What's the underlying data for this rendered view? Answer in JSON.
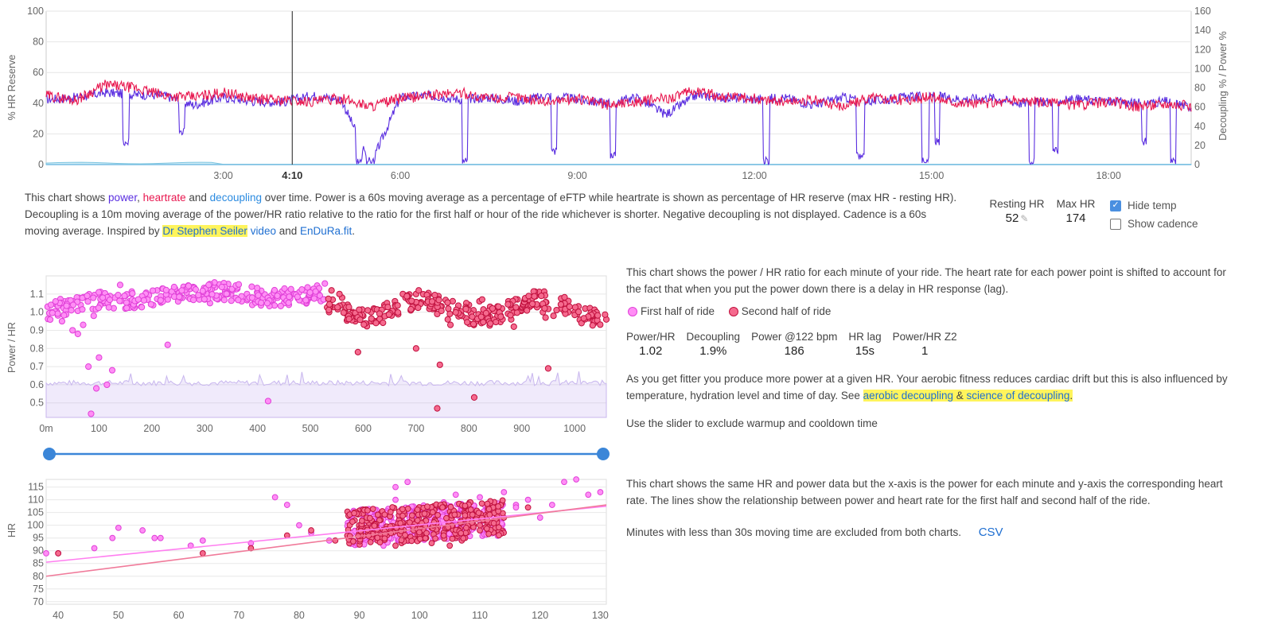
{
  "top_chart": {
    "y_left_label": "% HR Reserve",
    "y_right_label": "Decoupling % / Power %",
    "y_left_ticks": [
      "0",
      "20",
      "40",
      "60",
      "80",
      "100"
    ],
    "y_right_ticks": [
      "0",
      "20",
      "40",
      "60",
      "80",
      "100",
      "120",
      "140",
      "160"
    ],
    "x_ticks": [
      "3:00",
      "6:00",
      "9:00",
      "12:00",
      "15:00",
      "18:00"
    ],
    "cursor_label": "4:10"
  },
  "description1": {
    "t1": "This chart shows ",
    "power": "power",
    "sep1": ", ",
    "heartrate": "heartrate",
    "t2": " and ",
    "decoupling": "decoupling",
    "t3": " over time. Power is a 60s moving average as a percentage of eFTP while heartrate is shown as percentage of HR reserve (max HR - resting HR). Decoupling is a 10m moving average of the power/HR ratio relative to the ratio for the first half or hour of the ride whichever is shorter. Negative decoupling is not displayed. Cadence is a 60s moving average. Inspired by ",
    "link_seiler": "Dr Stephen Seiler",
    "t4": " ",
    "link_video": "video",
    "t5": " and ",
    "link_endura": "EnDuRa.fit",
    "t6": "."
  },
  "hr_settings": {
    "resting_label": "Resting HR",
    "resting_value": "52",
    "max_label": "Max HR",
    "max_value": "174",
    "hide_temp_label": "Hide temp",
    "hide_temp_checked": true,
    "show_cadence_label": "Show cadence",
    "show_cadence_checked": false
  },
  "ratio_chart": {
    "y_label": "Power / HR",
    "y_ticks": [
      "0.5",
      "0.6",
      "0.7",
      "0.8",
      "0.9",
      "1.0",
      "1.1"
    ],
    "x_ticks": [
      "0m",
      "100",
      "200",
      "300",
      "400",
      "500",
      "600",
      "700",
      "800",
      "900",
      "1000"
    ]
  },
  "slider": {
    "start_fraction": 0.0,
    "end_fraction": 1.0
  },
  "description2": {
    "text": "This chart shows the power / HR ratio for each minute of your ride. The heart rate for each power point is shifted to account for the fact that when you put the power down there is a delay in HR response (lag).",
    "legend_first": "First half of ride",
    "legend_second": "Second half of ride"
  },
  "stats": [
    {
      "label": "Power/HR",
      "value": "1.02"
    },
    {
      "label": "Decoupling",
      "value": "1.9%"
    },
    {
      "label": "Power @122 bpm",
      "value": "186"
    },
    {
      "label": "HR lag",
      "value": "15s"
    },
    {
      "label": "Power/HR Z2",
      "value": "1"
    }
  ],
  "description3": {
    "t1": "As you get fitter you produce more power at a given HR. Your aerobic fitness reduces cardiac drift but this is also influenced by temperature, hydration level and time of day. See ",
    "link_aerobic": "aerobic decoupling",
    "amp": " & ",
    "link_science": "science of decoupling",
    "t2": "."
  },
  "slider_hint": "Use the slider to exclude warmup and cooldown time",
  "scatter_chart": {
    "y_label": "HR",
    "y_ticks": [
      "70",
      "75",
      "80",
      "85",
      "90",
      "95",
      "100",
      "105",
      "110",
      "115"
    ],
    "x_ticks": [
      "40",
      "50",
      "60",
      "70",
      "80",
      "90",
      "100",
      "110",
      "120",
      "130"
    ]
  },
  "description4": "This chart shows the same HR and power data but the x-axis is the power for each minute and y-axis the corresponding heart rate. The lines show the relationship between power and heart rate for the first half and second half of the ride.",
  "description5": "Minutes with less than 30s moving time are excluded from both charts.",
  "csv_label": "CSV",
  "colors": {
    "power": "#5a2ee0",
    "heartrate": "#e8174f",
    "decoupling": "#2a8ae0",
    "first_half": "#ff2ee6",
    "second_half": "#e8174f",
    "slider": "#3b86d8",
    "highlight": "#fff45c"
  },
  "chart_data": [
    {
      "type": "line",
      "xlabel": "",
      "ylabel": "% HR Reserve",
      "y2label": "Decoupling % / Power %",
      "xlim_minutes": [
        0,
        19.4
      ],
      "ylim": [
        0,
        100
      ],
      "y2lim": [
        0,
        160
      ],
      "cursor_minute": 4.17,
      "series": [
        {
          "name": "heartrate",
          "axis": "left",
          "x": [
            0,
            0.5,
            1,
            1.5,
            2,
            2.5,
            3,
            3.5,
            4,
            4.5,
            5,
            5.5,
            6,
            6.5,
            7,
            7.5,
            8,
            8.5,
            9,
            9.5,
            10,
            10.5,
            11,
            11.5,
            12,
            12.5,
            13,
            13.5,
            14,
            14.5,
            15,
            15.5,
            16,
            16.5,
            17,
            17.5,
            18,
            18.5,
            19,
            19.4
          ],
          "y": [
            45,
            42,
            52,
            50,
            45,
            44,
            47,
            43,
            42,
            41,
            43,
            38,
            43,
            45,
            47,
            43,
            44,
            41,
            43,
            39,
            41,
            43,
            48,
            44,
            43,
            41,
            42,
            38,
            44,
            42,
            44,
            40,
            40,
            42,
            40,
            39,
            41,
            38,
            40,
            38
          ]
        },
        {
          "name": "power",
          "axis": "right",
          "x": [
            0,
            0.5,
            1,
            1.5,
            2,
            2.5,
            3,
            3.5,
            4,
            4.5,
            5,
            5.5,
            6,
            6.5,
            7,
            7.5,
            8,
            8.5,
            9,
            9.5,
            10,
            10.5,
            11,
            11.5,
            12,
            12.5,
            13,
            13.5,
            14,
            14.5,
            15,
            15.5,
            16,
            16.5,
            17,
            17.5,
            18,
            18.5,
            19,
            19.4
          ],
          "y": [
            68,
            70,
            75,
            73,
            72,
            62,
            70,
            66,
            65,
            72,
            68,
            0,
            70,
            72,
            68,
            70,
            66,
            72,
            68,
            64,
            70,
            52,
            72,
            70,
            68,
            70,
            62,
            70,
            66,
            70,
            72,
            68,
            70,
            64,
            66,
            68,
            66,
            64,
            66,
            60
          ]
        }
      ]
    },
    {
      "type": "scatter",
      "ylabel": "Power / HR",
      "xlim": [
        0,
        1060
      ],
      "ylim": [
        0.42,
        1.2
      ],
      "series": [
        {
          "name": "First half of ride",
          "x": [
            10,
            30,
            50,
            70,
            90,
            110,
            130,
            150,
            170,
            190,
            210,
            230,
            250,
            270,
            290,
            310,
            330,
            350,
            370,
            390,
            410,
            430,
            450,
            470,
            490,
            510,
            20,
            60,
            100,
            140,
            180,
            220,
            260,
            300,
            340,
            380,
            420,
            460,
            500,
            80,
            95,
            115,
            125,
            230,
            420,
            85,
            100
          ],
          "y": [
            1.0,
            0.95,
            0.9,
            0.93,
            0.98,
            1.05,
            1.08,
            1.02,
            1.06,
            1.1,
            1.12,
            1.09,
            1.11,
            1.08,
            1.07,
            1.05,
            1.09,
            1.1,
            1.06,
            1.04,
            1.08,
            1.07,
            1.05,
            1.1,
            1.12,
            1.09,
            1.04,
            0.88,
            1.1,
            1.15,
            1.03,
            1.13,
            1.14,
            1.07,
            1.12,
            1.1,
            1.06,
            1.11,
            1.08,
            0.7,
            0.58,
            0.6,
            0.68,
            0.82,
            0.51,
            0.44,
            0.75
          ]
        },
        {
          "name": "Second half of ride",
          "x": [
            540,
            560,
            580,
            600,
            620,
            640,
            660,
            680,
            700,
            720,
            740,
            760,
            780,
            800,
            820,
            840,
            860,
            880,
            900,
            920,
            940,
            960,
            980,
            1000,
            1020,
            1040,
            1060,
            555,
            585,
            615,
            645,
            675,
            705,
            735,
            765,
            795,
            825,
            855,
            885,
            915,
            945,
            975,
            1005,
            1035,
            745,
            810,
            740,
            950,
            590,
            700
          ],
          "y": [
            1.12,
            1.08,
            1.0,
            0.98,
            1.02,
            1.04,
            1.06,
            1.08,
            1.1,
            1.05,
            0.99,
            0.96,
            1.0,
            1.04,
            1.06,
            1.03,
            0.98,
            0.96,
            1.02,
            1.04,
            1.0,
            0.98,
            1.01,
            1.0,
            1.02,
            0.98,
            0.96,
            1.1,
            0.95,
            1.0,
            1.05,
            1.1,
            1.12,
            1.02,
            0.93,
            1.05,
            1.07,
            1.0,
            0.92,
            1.03,
            0.97,
            1.02,
            0.99,
            0.95,
            0.71,
            0.53,
            0.47,
            0.69,
            0.78,
            0.8
          ]
        }
      ]
    },
    {
      "type": "scatter",
      "ylabel": "HR",
      "xlim": [
        38,
        131
      ],
      "ylim": [
        69,
        118
      ],
      "series": [
        {
          "name": "First half of ride",
          "trend": [
            [
              38,
              85.5
            ],
            [
              131,
              107.5
            ]
          ],
          "x": [
            38,
            40,
            46,
            49,
            50,
            54,
            56,
            57,
            62,
            64,
            72,
            76,
            78,
            80,
            82,
            85,
            88,
            90,
            92,
            94,
            96,
            98,
            100,
            102,
            104,
            106,
            108,
            110,
            112,
            114,
            116,
            118,
            120,
            122,
            124,
            126,
            128,
            130,
            99,
            101,
            103,
            105,
            107,
            96,
            94,
            112,
            116
          ],
          "y": [
            89,
            89,
            91,
            95,
            99,
            98,
            95,
            95,
            92,
            94,
            93,
            111,
            108,
            100,
            97,
            94,
            96,
            98,
            105,
            96,
            110,
            117,
            100,
            103,
            109,
            112,
            108,
            111,
            104,
            113,
            108,
            110,
            103,
            108,
            117,
            118,
            112,
            113,
            96,
            98,
            102,
            101,
            99,
            115,
            92,
            100,
            107
          ]
        },
        {
          "name": "Second half of ride",
          "trend": [
            [
              38,
              80
            ],
            [
              131,
              108
            ]
          ],
          "x": [
            40,
            64,
            72,
            78,
            82,
            86,
            88,
            90,
            92,
            94,
            95,
            96,
            97,
            98,
            99,
            100,
            101,
            102,
            103,
            104,
            105,
            106,
            107,
            108,
            109,
            110,
            111,
            112,
            114,
            118,
            96,
            98,
            100,
            102,
            104,
            106,
            108,
            110,
            93,
            95,
            97,
            99,
            101,
            103,
            105,
            107
          ],
          "y": [
            89,
            89,
            91,
            96,
            98,
            94,
            96,
            97,
            95,
            96,
            98,
            99,
            101,
            95,
            100,
            97,
            102,
            99,
            104,
            96,
            103,
            98,
            101,
            105,
            100,
            98,
            104,
            108,
            103,
            107,
            92,
            94,
            96,
            93,
            97,
            95,
            99,
            100,
            94,
            97,
            93,
            98,
            95,
            99,
            92,
            94
          ]
        }
      ]
    }
  ]
}
